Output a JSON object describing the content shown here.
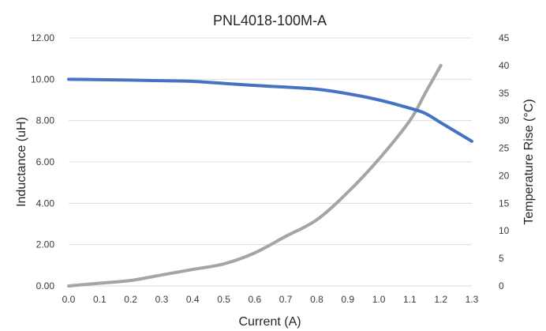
{
  "chart_data": {
    "type": "line",
    "title": "PNL4018-100M-A",
    "xlabel": "Current (A)",
    "ylabel_left": "Inductance (uH)",
    "ylabel_right": "Temperature Rise (°C)",
    "x_ticks": [
      "0.0",
      "0.1",
      "0.2",
      "0.3",
      "0.4",
      "0.5",
      "0.6",
      "0.7",
      "0.8",
      "0.9",
      "1.0",
      "1.1",
      "1.2",
      "1.3"
    ],
    "y_left_ticks": [
      "0.00",
      "2.00",
      "4.00",
      "6.00",
      "8.00",
      "10.00",
      "12.00"
    ],
    "y_right_ticks": [
      "0",
      "5",
      "10",
      "15",
      "20",
      "25",
      "30",
      "35",
      "40",
      "45"
    ],
    "xlim": [
      0,
      1.3
    ],
    "ylim_left": [
      0,
      12
    ],
    "ylim_right": [
      0,
      45
    ],
    "grid": true,
    "series": [
      {
        "axis": "left",
        "color": "#4472c4",
        "x": [
          0,
          0.1,
          0.2,
          0.3,
          0.4,
          0.5,
          0.6,
          0.7,
          0.8,
          0.9,
          1.0,
          1.1,
          1.15,
          1.2,
          1.3
        ],
        "y": [
          10.0,
          9.98,
          9.96,
          9.93,
          9.9,
          9.8,
          9.7,
          9.62,
          9.52,
          9.3,
          9.0,
          8.6,
          8.35,
          7.9,
          7.0
        ]
      },
      {
        "axis": "right",
        "color": "#a5a5a5",
        "x": [
          0,
          0.1,
          0.2,
          0.3,
          0.4,
          0.5,
          0.6,
          0.7,
          0.8,
          0.9,
          1.0,
          1.1,
          1.15,
          1.2
        ],
        "y": [
          0,
          0.5,
          1.0,
          2.0,
          3.0,
          4.0,
          6.0,
          9.0,
          12.0,
          17.0,
          23.0,
          30.0,
          35.0,
          40.0
        ]
      }
    ]
  }
}
